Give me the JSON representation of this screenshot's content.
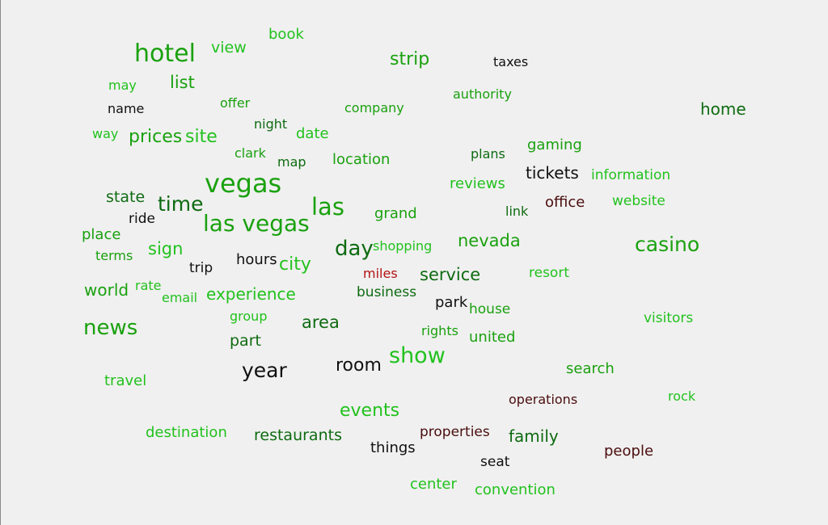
{
  "colors": {
    "bright_green": "#22c21e",
    "green": "#1aa10f",
    "dark_green": "#0e6b11",
    "near_black": "#101010",
    "dark_red": "#4a0d0d",
    "red": "#b31212",
    "background": "#f0f0f0"
  },
  "words": [
    {
      "text": "book",
      "color": "#22c21e"
    },
    {
      "text": "hotel",
      "color": "#1aa10f"
    },
    {
      "text": "view",
      "color": "#22c21e"
    },
    {
      "text": "strip",
      "color": "#1aa10f"
    },
    {
      "text": "taxes",
      "color": "#101010"
    },
    {
      "text": "may",
      "color": "#22c21e"
    },
    {
      "text": "list",
      "color": "#1aa10f"
    },
    {
      "text": "authority",
      "color": "#1aa10f"
    },
    {
      "text": "name",
      "color": "#101010"
    },
    {
      "text": "offer",
      "color": "#1aa10f"
    },
    {
      "text": "company",
      "color": "#1aa10f"
    },
    {
      "text": "home",
      "color": "#0e6b11"
    },
    {
      "text": "way",
      "color": "#22c21e"
    },
    {
      "text": "prices",
      "color": "#1aa10f"
    },
    {
      "text": "site",
      "color": "#22c21e"
    },
    {
      "text": "night",
      "color": "#0e6b11"
    },
    {
      "text": "date",
      "color": "#22c21e"
    },
    {
      "text": "clark",
      "color": "#1aa10f"
    },
    {
      "text": "map",
      "color": "#0e6b11"
    },
    {
      "text": "location",
      "color": "#1aa10f"
    },
    {
      "text": "plans",
      "color": "#0e6b11"
    },
    {
      "text": "gaming",
      "color": "#1aa10f"
    },
    {
      "text": "tickets",
      "color": "#101010"
    },
    {
      "text": "information",
      "color": "#22c21e"
    },
    {
      "text": "vegas",
      "color": "#1aa10f"
    },
    {
      "text": "reviews",
      "color": "#22c21e"
    },
    {
      "text": "state",
      "color": "#0e6b11"
    },
    {
      "text": "time",
      "color": "#0e6b11"
    },
    {
      "text": "las",
      "color": "#1aa10f"
    },
    {
      "text": "office",
      "color": "#4a0d0d"
    },
    {
      "text": "website",
      "color": "#22c21e"
    },
    {
      "text": "ride",
      "color": "#101010"
    },
    {
      "text": "las vegas",
      "color": "#1aa10f"
    },
    {
      "text": "grand",
      "color": "#1aa10f"
    },
    {
      "text": "link",
      "color": "#0e6b11"
    },
    {
      "text": "place",
      "color": "#1aa10f"
    },
    {
      "text": "casino",
      "color": "#1aa10f"
    },
    {
      "text": "day",
      "color": "#0e6b11"
    },
    {
      "text": "shopping",
      "color": "#22c21e"
    },
    {
      "text": "nevada",
      "color": "#1aa10f"
    },
    {
      "text": "sign",
      "color": "#22c21e"
    },
    {
      "text": "terms",
      "color": "#1aa10f"
    },
    {
      "text": "trip",
      "color": "#101010"
    },
    {
      "text": "hours",
      "color": "#101010"
    },
    {
      "text": "city",
      "color": "#22c21e"
    },
    {
      "text": "miles",
      "color": "#b31212"
    },
    {
      "text": "service",
      "color": "#0e6b11"
    },
    {
      "text": "resort",
      "color": "#22c21e"
    },
    {
      "text": "world",
      "color": "#1aa10f"
    },
    {
      "text": "rate",
      "color": "#22c21e"
    },
    {
      "text": "email",
      "color": "#22c21e"
    },
    {
      "text": "experience",
      "color": "#22c21e"
    },
    {
      "text": "business",
      "color": "#0e6b11"
    },
    {
      "text": "park",
      "color": "#101010"
    },
    {
      "text": "house",
      "color": "#1aa10f"
    },
    {
      "text": "group",
      "color": "#22c21e"
    },
    {
      "text": "visitors",
      "color": "#22c21e"
    },
    {
      "text": "news",
      "color": "#1aa10f"
    },
    {
      "text": "area",
      "color": "#0e6b11"
    },
    {
      "text": "rights",
      "color": "#1aa10f"
    },
    {
      "text": "part",
      "color": "#0e6b11"
    },
    {
      "text": "united",
      "color": "#1aa10f"
    },
    {
      "text": "show",
      "color": "#22c21e"
    },
    {
      "text": "room",
      "color": "#101010"
    },
    {
      "text": "year",
      "color": "#101010"
    },
    {
      "text": "search",
      "color": "#1aa10f"
    },
    {
      "text": "travel",
      "color": "#22c21e"
    },
    {
      "text": "operations",
      "color": "#4a0d0d"
    },
    {
      "text": "rock",
      "color": "#22c21e"
    },
    {
      "text": "events",
      "color": "#22c21e"
    },
    {
      "text": "destination",
      "color": "#22c21e"
    },
    {
      "text": "restaurants",
      "color": "#0e6b11"
    },
    {
      "text": "properties",
      "color": "#4a0d0d"
    },
    {
      "text": "family",
      "color": "#0e6b11"
    },
    {
      "text": "things",
      "color": "#101010"
    },
    {
      "text": "people",
      "color": "#4a0d0d"
    },
    {
      "text": "seat",
      "color": "#101010"
    },
    {
      "text": "center",
      "color": "#22c21e"
    },
    {
      "text": "convention",
      "color": "#22c21e"
    }
  ]
}
